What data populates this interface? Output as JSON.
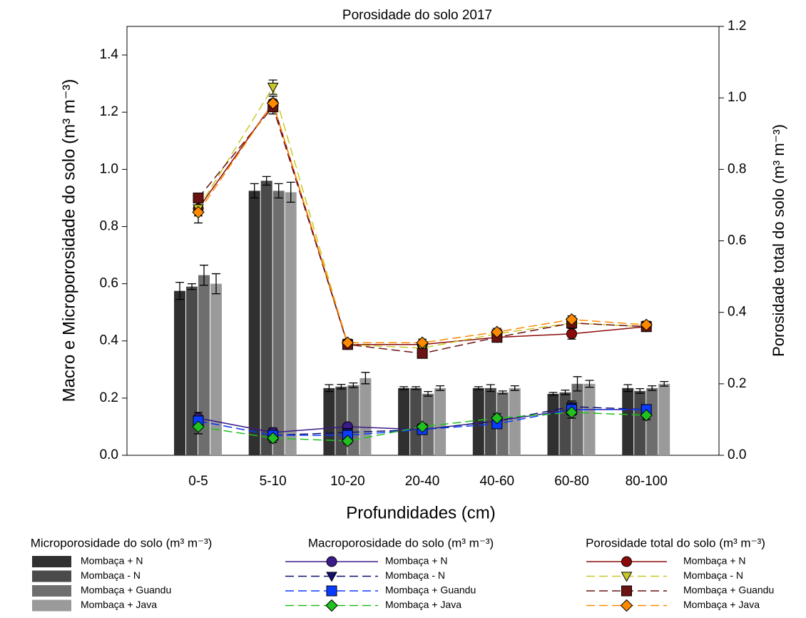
{
  "chart_data": {
    "type": "bar",
    "title": "Porosidade do solo 2017",
    "x_label": "Profundidades (cm)",
    "y_label": "Macro e Microporosidade do solo (m³ m⁻³)",
    "y2_label": "Porosidade total do solo (m³ m⁻³)",
    "categories": [
      "0-5",
      "5-10",
      "10-20",
      "20-40",
      "40-60",
      "60-80",
      "80-100"
    ],
    "ylim": [
      0,
      1.5
    ],
    "yticks": [
      {
        "value": 0,
        "label": "0.0"
      },
      0.2,
      0.4,
      0.6,
      0.8,
      {
        "value": 1,
        "label": "1.0"
      },
      1.2,
      1.4
    ],
    "y2lim": [
      0,
      1.2
    ],
    "y2ticks": [
      {
        "value": 0,
        "label": "0.0"
      },
      0.2,
      0.4,
      0.6,
      0.8,
      {
        "value": 1,
        "label": "1.0"
      },
      1.2
    ],
    "legend_titles": [
      "Microporosidade do solo (m³ m⁻³)",
      "Macroporosidade do solo (m³ m⁻³)",
      "Porosidade total do solo (m³ m⁻³)"
    ],
    "series": [
      {
        "name": "Mombaça + N",
        "type": "bar",
        "color": "#303030",
        "values": [
          0.575,
          0.925,
          0.235,
          0.235,
          0.235,
          0.215,
          0.235
        ],
        "errors": [
          0.03,
          0.025,
          0.012,
          0.005,
          0.005,
          0.005,
          0.012
        ]
      },
      {
        "name": "Mombaça - N",
        "type": "bar",
        "color": "#4a4a4a",
        "values": [
          0.59,
          0.96,
          0.24,
          0.235,
          0.235,
          0.22,
          0.225
        ],
        "errors": [
          0.01,
          0.015,
          0.008,
          0.005,
          0.012,
          0.008,
          0.008
        ]
      },
      {
        "name": "Mombaça + Guandu",
        "type": "bar",
        "color": "#6e6e6e",
        "values": [
          0.63,
          0.925,
          0.245,
          0.215,
          0.22,
          0.25,
          0.235
        ],
        "errors": [
          0.035,
          0.025,
          0.008,
          0.008,
          0.005,
          0.025,
          0.008
        ]
      },
      {
        "name": "Mombaça + Java",
        "type": "bar",
        "color": "#9a9a9a",
        "values": [
          0.6,
          0.92,
          0.27,
          0.235,
          0.235,
          0.25,
          0.25
        ],
        "errors": [
          0.035,
          0.035,
          0.02,
          0.008,
          0.008,
          0.012,
          0.008
        ]
      },
      {
        "name": "Mombaça + N",
        "type": "line",
        "marker": "circle",
        "dashed": false,
        "color": "#3b1a8a",
        "values": [
          0.13,
          0.08,
          0.1,
          0.09,
          0.12,
          0.16,
          0.16
        ],
        "errors": [
          0.02,
          0.015,
          0.01,
          0.01,
          0.015,
          0.02,
          0.015
        ]
      },
      {
        "name": "Mombaça - N",
        "type": "line",
        "marker": "triangle",
        "dashed": true,
        "color": "#101070",
        "values": [
          0.12,
          0.07,
          0.08,
          0.09,
          0.12,
          0.17,
          0.16
        ],
        "errors": [
          0.02,
          0.015,
          0.01,
          0.01,
          0.015,
          0.02,
          0.015
        ]
      },
      {
        "name": "Mombaça + Guandu",
        "type": "line",
        "marker": "square",
        "dashed": true,
        "color": "#0a3cff",
        "values": [
          0.12,
          0.07,
          0.07,
          0.09,
          0.11,
          0.16,
          0.16
        ],
        "errors": [
          0.02,
          0.015,
          0.01,
          0.01,
          0.015,
          0.02,
          0.015
        ]
      },
      {
        "name": "Mombaça + Java",
        "type": "line",
        "marker": "diamond",
        "dashed": true,
        "color": "#1fc01f",
        "values": [
          0.1,
          0.06,
          0.05,
          0.1,
          0.13,
          0.15,
          0.14
        ],
        "errors": [
          0.025,
          0.015,
          0.01,
          0.01,
          0.015,
          0.02,
          0.015
        ]
      },
      {
        "name": "Mombaça + N",
        "type": "line",
        "axis": "y2",
        "marker": "circle",
        "dashed": false,
        "color": "#8b0a0a",
        "values": [
          0.69,
          0.985,
          0.31,
          0.31,
          0.33,
          0.34,
          0.36
        ],
        "errors": [
          0.02,
          0.02,
          0.01,
          0.01,
          0.01,
          0.015,
          0.01
        ]
      },
      {
        "name": "Mombaça - N",
        "type": "line",
        "axis": "y2",
        "marker": "triangle",
        "dashed": true,
        "color": "#c8c828",
        "values": [
          0.69,
          1.03,
          0.31,
          0.3,
          0.34,
          0.37,
          0.36
        ],
        "errors": [
          0.02,
          0.02,
          0.01,
          0.01,
          0.01,
          0.01,
          0.01
        ]
      },
      {
        "name": "Mombaça + Guandu",
        "type": "line",
        "axis": "y2",
        "marker": "square",
        "dashed": true,
        "color": "#6b1212",
        "values": [
          0.72,
          0.975,
          0.31,
          0.285,
          0.33,
          0.37,
          0.36
        ],
        "errors": [
          0.01,
          0.02,
          0.01,
          0.01,
          0.01,
          0.01,
          0.01
        ]
      },
      {
        "name": "Mombaça + Java",
        "type": "line",
        "axis": "y2",
        "marker": "diamond",
        "dashed": true,
        "color": "#ff8a00",
        "values": [
          0.68,
          0.985,
          0.315,
          0.315,
          0.345,
          0.38,
          0.365
        ],
        "errors": [
          0.03,
          0.02,
          0.01,
          0.01,
          0.01,
          0.01,
          0.01
        ]
      }
    ]
  }
}
